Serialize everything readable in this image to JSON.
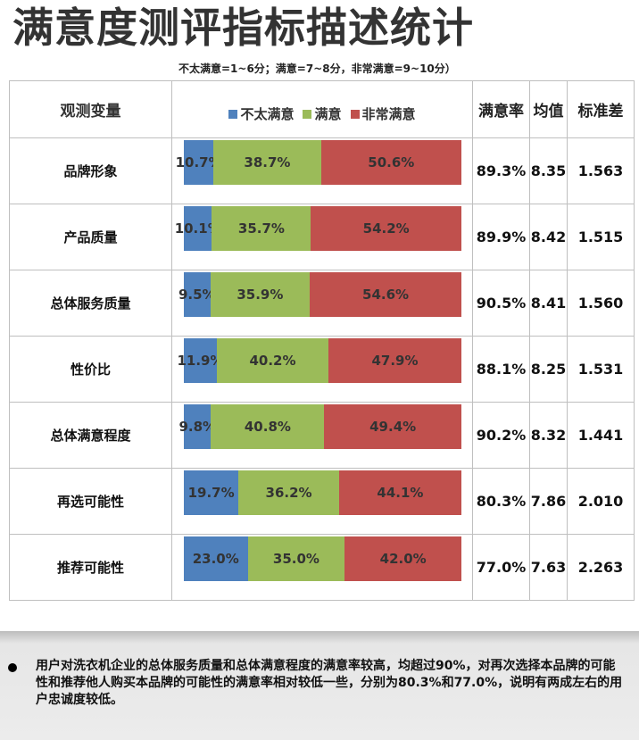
{
  "title": "满意度测评指标描述统计",
  "subtitle": "不太满意=1~6分；满意=7~8分，非常满意=9~10分）",
  "header": {
    "variable": "观测变量",
    "rate": "满意率",
    "mean": "均值",
    "sd": "标准差"
  },
  "colors": {
    "low": "#4f81bd",
    "mid": "#9bbb59",
    "high": "#c0504d"
  },
  "chart_data": {
    "type": "bar",
    "stacked": true,
    "orientation": "horizontal",
    "percent_stacked": true,
    "categories": [
      "品牌形象",
      "产品质量",
      "总体服务质量",
      "性价比",
      "总体满意程度",
      "再选可能性",
      "推荐可能性"
    ],
    "series": [
      {
        "name": "不太满意",
        "values": [
          10.7,
          10.1,
          9.5,
          11.9,
          9.8,
          19.7,
          23.0
        ],
        "labels": [
          "10.7%",
          "10.1%",
          "9.5%",
          "11.9%",
          "9.8%",
          "19.7%",
          "23.0%"
        ]
      },
      {
        "name": "满意",
        "values": [
          38.7,
          35.7,
          35.9,
          40.2,
          40.8,
          36.2,
          35.0
        ],
        "labels": [
          "38.7%",
          "35.7%",
          "35.9%",
          "40.2%",
          "40.8%",
          "36.2%",
          "35.0%"
        ]
      },
      {
        "name": "非常满意",
        "values": [
          50.6,
          54.2,
          54.6,
          47.9,
          49.4,
          44.1,
          42.0
        ],
        "labels": [
          "50.6%",
          "54.2%",
          "54.6%",
          "47.9%",
          "49.4%",
          "44.1%",
          "42.0%"
        ]
      }
    ],
    "legend": "top"
  },
  "stats": [
    {
      "rate": "89.3%",
      "mean": "8.35",
      "sd": "1.563"
    },
    {
      "rate": "89.9%",
      "mean": "8.42",
      "sd": "1.515"
    },
    {
      "rate": "90.5%",
      "mean": "8.41",
      "sd": "1.560"
    },
    {
      "rate": "88.1%",
      "mean": "8.25",
      "sd": "1.531"
    },
    {
      "rate": "90.2%",
      "mean": "8.32",
      "sd": "1.441"
    },
    {
      "rate": "80.3%",
      "mean": "7.86",
      "sd": "2.010"
    },
    {
      "rate": "77.0%",
      "mean": "7.63",
      "sd": "2.263"
    }
  ],
  "note": "用户对洗衣机企业的总体服务质量和总体满意程度的满意率较高，均超过90%，对再次选择本品牌的可能性和推荐他人购买本品牌的可能性的满意率相对较低一些，分别为80.3%和77.0%，说明有两成左右的用户忠诚度较低。"
}
